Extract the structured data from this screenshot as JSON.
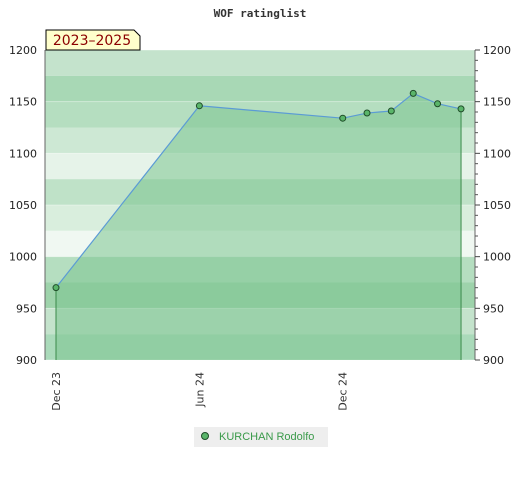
{
  "chart_data": {
    "type": "area",
    "title": "WOF ratinglist",
    "period_badge": "2023–2025",
    "xlabel": "",
    "ylabel": "",
    "ylim": [
      900,
      1200
    ],
    "y_ticks": [
      900,
      950,
      1000,
      1050,
      1100,
      1150,
      1200
    ],
    "x_range": [
      "2023-12-01",
      "2025-05-15"
    ],
    "x_tick_labels": [
      {
        "date": "2023-12-01",
        "label": "Dec 23"
      },
      {
        "date": "2024-06-01",
        "label": "Jun 24"
      },
      {
        "date": "2024-12-01",
        "label": "Dec 24"
      }
    ],
    "legend_position": "bottom-center",
    "grid": true,
    "series": [
      {
        "name": "KURCHAN Rodolfo",
        "points": [
          {
            "date": "2023-12-01",
            "value": 970
          },
          {
            "date": "2024-06-01",
            "value": 1146
          },
          {
            "date": "2024-12-01",
            "value": 1134
          },
          {
            "date": "2025-01-01",
            "value": 1139
          },
          {
            "date": "2025-02-01",
            "value": 1141
          },
          {
            "date": "2025-03-01",
            "value": 1158
          },
          {
            "date": "2025-04-01",
            "value": 1148
          },
          {
            "date": "2025-05-01",
            "value": 1143
          }
        ]
      }
    ],
    "colors": {
      "line": "#5b9bd5",
      "area_fill": "#7cc48f",
      "marker_fill": "#5ab56a",
      "marker_stroke": "#1f4d29",
      "legend_text": "#3a9a4a",
      "period_badge_bg": "#ffffcc",
      "period_badge_text": "#8b0000"
    }
  }
}
